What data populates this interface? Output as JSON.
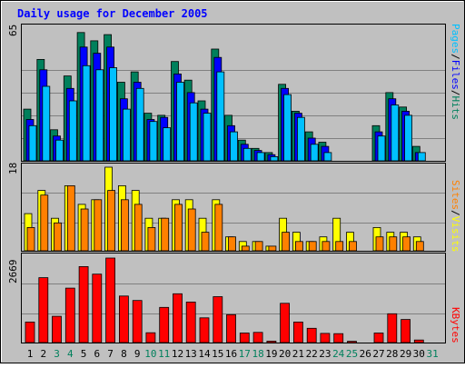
{
  "chart_data": [
    {
      "type": "bar",
      "title": "Daily usage for December 2005",
      "categories": [
        "1",
        "2",
        "3",
        "4",
        "5",
        "6",
        "7",
        "8",
        "9",
        "10",
        "11",
        "12",
        "13",
        "14",
        "15",
        "16",
        "17",
        "18",
        "19",
        "20",
        "21",
        "22",
        "23",
        "24",
        "25",
        "26",
        "27",
        "28",
        "29",
        "30",
        "31"
      ],
      "weekend_days": [
        "3",
        "4",
        "10",
        "11",
        "17",
        "18",
        "24",
        "25",
        "31"
      ],
      "ylabel_max": "65",
      "ylim": [
        0,
        65
      ],
      "legend": [
        "Pages",
        "/",
        "Files",
        "/",
        "Hits"
      ],
      "series": [
        {
          "name": "Hits",
          "color": "#00805c",
          "values": [
            25,
            49,
            15,
            41,
            62,
            58,
            61,
            38,
            43,
            23,
            22,
            48,
            39,
            29,
            54,
            22,
            10,
            6,
            4,
            37,
            24,
            14,
            9,
            0,
            0,
            0,
            17,
            33,
            26,
            7,
            0
          ]
        },
        {
          "name": "Files",
          "color": "#0000ff",
          "values": [
            20,
            44,
            12,
            35,
            55,
            52,
            55,
            30,
            38,
            20,
            21,
            42,
            33,
            25,
            50,
            17,
            8,
            5,
            3,
            35,
            23,
            11,
            7,
            0,
            0,
            0,
            14,
            30,
            24,
            4,
            0
          ]
        },
        {
          "name": "Pages",
          "color": "#00c0ff",
          "values": [
            17,
            36,
            10,
            29,
            46,
            44,
            45,
            25,
            35,
            19,
            16,
            38,
            28,
            23,
            43,
            14,
            6,
            4,
            2,
            32,
            21,
            8,
            4,
            0,
            0,
            0,
            12,
            27,
            22,
            4,
            0
          ]
        }
      ]
    },
    {
      "type": "bar",
      "ylabel_max": "18",
      "ylim": [
        0,
        18
      ],
      "legend": [
        "Sites",
        "/",
        "Visits"
      ],
      "series": [
        {
          "name": "Visits",
          "color": "#ffff00",
          "values": [
            8,
            13,
            7,
            14,
            10,
            11,
            18,
            14,
            13,
            7,
            7,
            11,
            11,
            7,
            11,
            3,
            2,
            2,
            1,
            7,
            4,
            2,
            3,
            7,
            4,
            0,
            5,
            4,
            4,
            3,
            0
          ]
        },
        {
          "name": "Sites",
          "color": "#ff8000",
          "values": [
            5,
            12,
            6,
            14,
            9,
            11,
            13,
            11,
            10,
            5,
            7,
            10,
            9,
            4,
            10,
            3,
            1,
            2,
            1,
            4,
            2,
            2,
            2,
            2,
            2,
            0,
            3,
            3,
            3,
            2,
            0
          ]
        }
      ]
    },
    {
      "type": "bar",
      "ylabel_max": "2669",
      "ylim": [
        0,
        2669
      ],
      "legend": [
        "KBytes"
      ],
      "series": [
        {
          "name": "KBytes",
          "color": "#ff0000",
          "values": [
            650,
            2050,
            830,
            1720,
            2400,
            2160,
            2669,
            1470,
            1330,
            310,
            1110,
            1540,
            1280,
            780,
            1450,
            880,
            300,
            320,
            45,
            1240,
            650,
            450,
            290,
            280,
            40,
            0,
            300,
            910,
            730,
            80,
            0
          ]
        }
      ]
    }
  ]
}
